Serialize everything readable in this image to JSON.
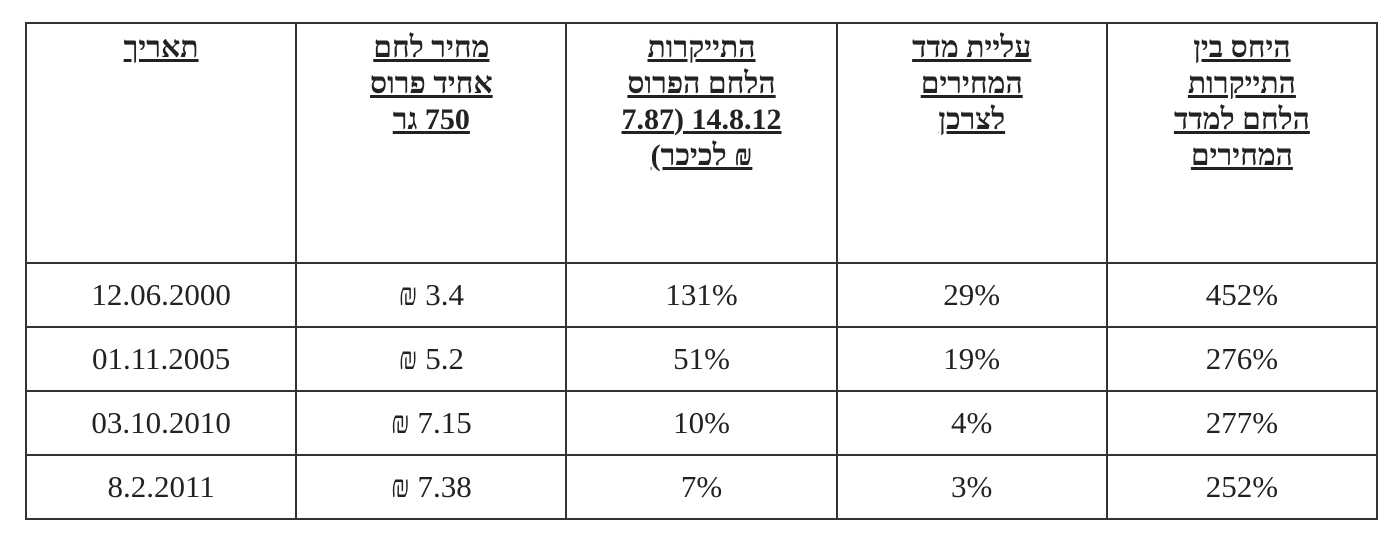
{
  "table": {
    "header": [
      [
        "היחס בין",
        "התייקרות",
        "הלחם למדד",
        "המחירים"
      ],
      [
        "עליית מדד",
        "המחירים",
        "לצרכן"
      ],
      [
        "התייקרות",
        "הלחם הפרוס",
        "14.8.12 (7.87",
        "₪ לכיכר)"
      ],
      [
        "מחיר לחם",
        "אחיד פרוס",
        "750 גר"
      ],
      [
        "תאריך"
      ]
    ],
    "rows": [
      [
        "452%",
        "29%",
        "131%",
        "3.4 ₪",
        "12.06.2000"
      ],
      [
        "276%",
        "19%",
        "51%",
        "5.2 ₪",
        "01.11.2005"
      ],
      [
        "277%",
        "4%",
        "10%",
        "7.15 ₪",
        "03.10.2010"
      ],
      [
        "252%",
        "3%",
        "7%",
        "7.38 ₪",
        "8.2.2011"
      ]
    ]
  }
}
